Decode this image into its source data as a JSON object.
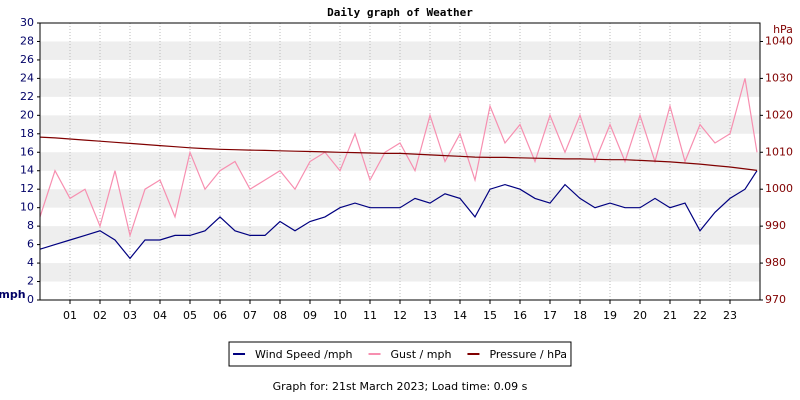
{
  "chart_data": {
    "type": "line",
    "title": "Daily graph of Weather",
    "y_label": "mph",
    "y2_label": "hPa",
    "footer": "Graph for: 21st March 2023; Load time: 0.09 s",
    "xlim": [
      0,
      24
    ],
    "xticks": [
      {
        "value": 1,
        "label": "01"
      },
      {
        "value": 2,
        "label": "02"
      },
      {
        "value": 3,
        "label": "03"
      },
      {
        "value": 4,
        "label": "04"
      },
      {
        "value": 5,
        "label": "05"
      },
      {
        "value": 6,
        "label": "06"
      },
      {
        "value": 7,
        "label": "07"
      },
      {
        "value": 8,
        "label": "08"
      },
      {
        "value": 9,
        "label": "09"
      },
      {
        "value": 10,
        "label": "10"
      },
      {
        "value": 11,
        "label": "11"
      },
      {
        "value": 12,
        "label": "12"
      },
      {
        "value": 13,
        "label": "13"
      },
      {
        "value": 14,
        "label": "14"
      },
      {
        "value": 15,
        "label": "15"
      },
      {
        "value": 16,
        "label": "16"
      },
      {
        "value": 17,
        "label": "17"
      },
      {
        "value": 18,
        "label": "18"
      },
      {
        "value": 19,
        "label": "19"
      },
      {
        "value": 20,
        "label": "20"
      },
      {
        "value": 21,
        "label": "21"
      },
      {
        "value": 22,
        "label": "22"
      },
      {
        "value": 23,
        "label": "23"
      }
    ],
    "ylim": [
      0,
      30
    ],
    "yticks": [
      0,
      2,
      4,
      6,
      8,
      10,
      12,
      14,
      16,
      18,
      20,
      22,
      24,
      26,
      28,
      30
    ],
    "y2lim": [
      970,
      1045
    ],
    "y2ticks": [
      970,
      980,
      990,
      1000,
      1010,
      1020,
      1030,
      1040
    ],
    "grid": true,
    "legend": "bottom",
    "x": [
      0,
      0.5,
      1,
      1.5,
      2,
      2.5,
      3,
      3.5,
      4,
      4.5,
      5,
      5.5,
      6,
      6.5,
      7,
      7.5,
      8,
      8.5,
      9,
      9.5,
      10,
      10.5,
      11,
      11.5,
      12,
      12.5,
      13,
      13.5,
      14,
      14.5,
      15,
      15.5,
      16,
      16.5,
      17,
      17.5,
      18,
      18.5,
      19,
      19.5,
      20,
      20.5,
      21,
      21.5,
      22,
      22.5,
      23,
      23.5,
      23.9
    ],
    "series": [
      {
        "name": "Wind Speed /mph",
        "color": "#000080",
        "values": [
          5.5,
          6,
          6.5,
          7,
          7.5,
          6.5,
          4.5,
          6.5,
          6.5,
          7,
          7,
          7.5,
          9,
          7.5,
          7,
          7,
          8.5,
          7.5,
          8.5,
          9,
          10,
          10.5,
          10,
          10,
          10,
          11,
          10.5,
          11.5,
          11,
          9,
          12,
          12.5,
          12,
          11,
          10.5,
          12.5,
          11,
          10,
          10.5,
          10,
          10,
          11,
          10,
          10.5,
          7.5,
          9.5,
          11,
          12,
          14
        ]
      },
      {
        "name": "Gust / mph",
        "color": "#f78fb0",
        "values": [
          9,
          14,
          11,
          12,
          8,
          14,
          7,
          12,
          13,
          9,
          16,
          12,
          14,
          15,
          12,
          13,
          14,
          12,
          15,
          16,
          14,
          18,
          13,
          16,
          17,
          14,
          20,
          15,
          18,
          13,
          21,
          17,
          19,
          15,
          20,
          16,
          20,
          15,
          19,
          15,
          20,
          15,
          21,
          15,
          19,
          17,
          18,
          24,
          16
        ]
      },
      {
        "name": "Pressure / hPa",
        "color": "#800000",
        "axis": "y2",
        "values": [
          1014.1,
          1013.9,
          1013.6,
          1013.3,
          1013.0,
          1012.7,
          1012.4,
          1012.1,
          1011.8,
          1011.5,
          1011.2,
          1011.0,
          1010.8,
          1010.7,
          1010.6,
          1010.5,
          1010.4,
          1010.3,
          1010.2,
          1010.1,
          1010.0,
          1009.9,
          1009.8,
          1009.7,
          1009.7,
          1009.5,
          1009.3,
          1009.1,
          1008.9,
          1008.7,
          1008.6,
          1008.6,
          1008.5,
          1008.4,
          1008.3,
          1008.2,
          1008.2,
          1008.1,
          1008.0,
          1008.0,
          1007.8,
          1007.6,
          1007.4,
          1007.1,
          1006.8,
          1006.4,
          1006.0,
          1005.5,
          1005.1
        ]
      }
    ]
  }
}
